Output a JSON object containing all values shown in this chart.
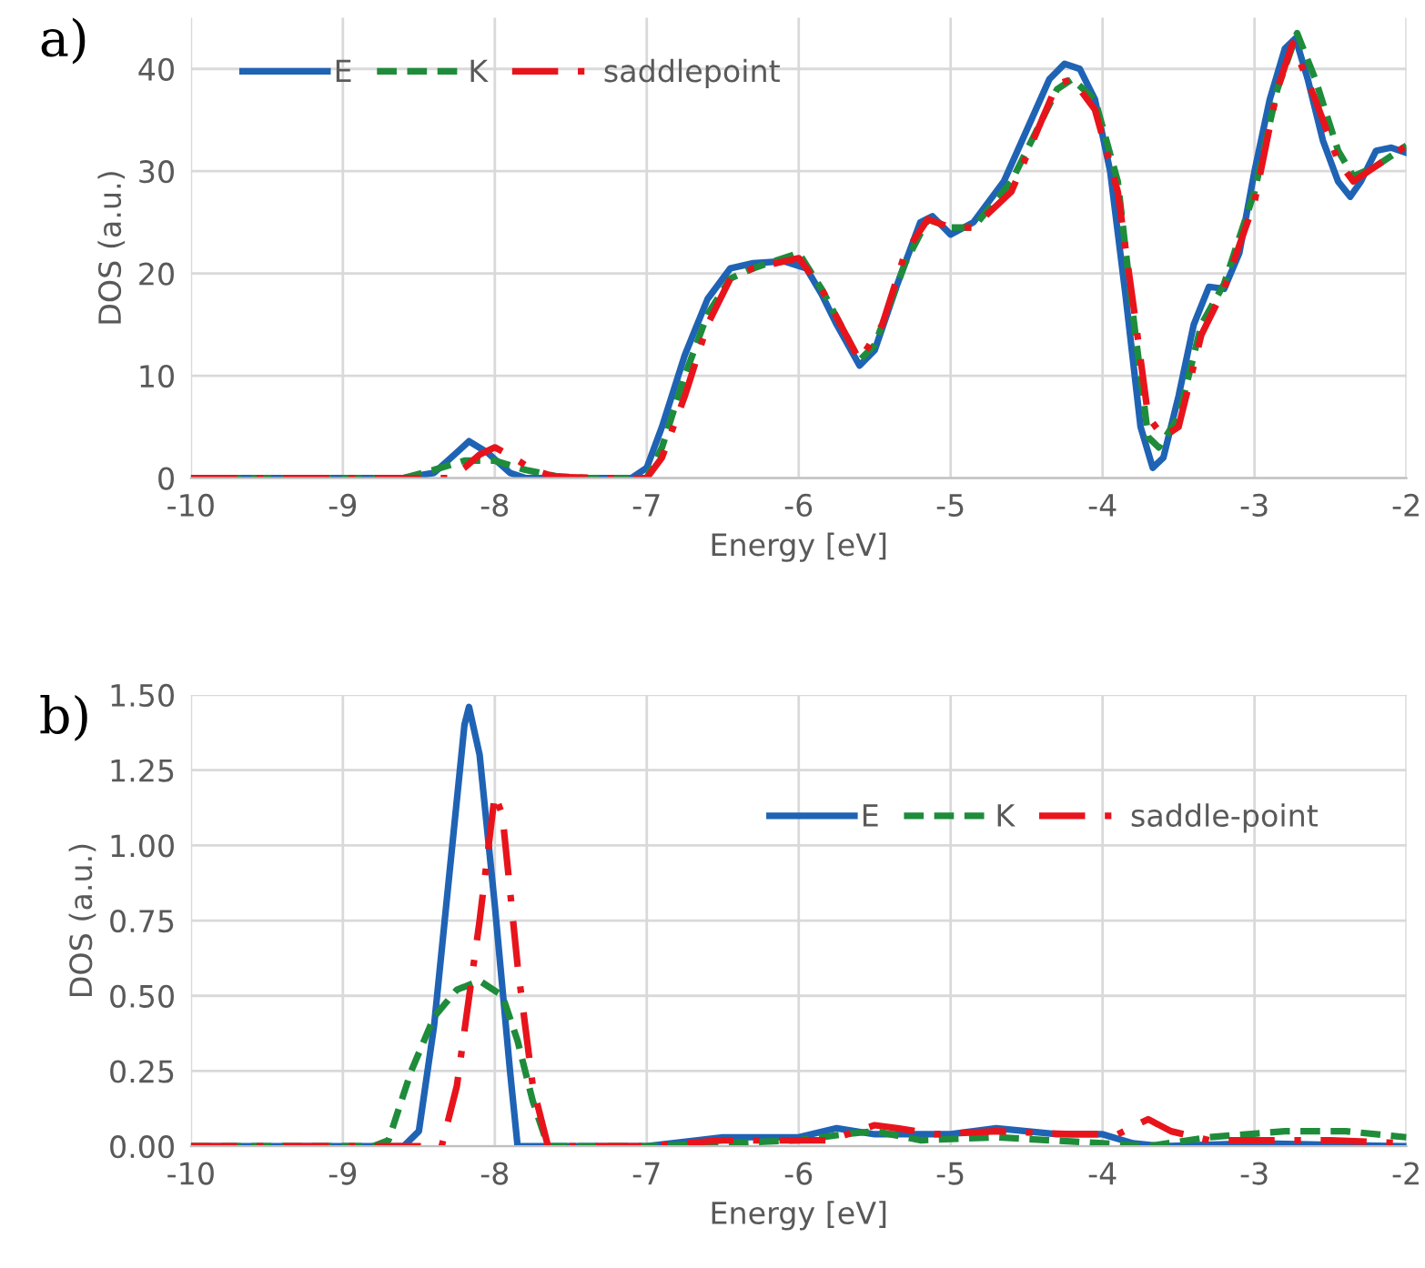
{
  "chart_data": [
    {
      "type": "line",
      "title": "a)",
      "xlabel": "Energy [eV]",
      "ylabel": "DOS (a.u.)",
      "xlim": [
        -10,
        -2
      ],
      "xticks": [
        -10,
        -9,
        -8,
        -7,
        -6,
        -5,
        -4,
        -3,
        -2
      ],
      "ylim": [
        0,
        45
      ],
      "yticks": [
        0,
        10,
        20,
        30,
        40
      ],
      "grid": true,
      "legend": "top left",
      "marker": "none",
      "series": [
        {
          "name": "E",
          "color": "#1f63b5",
          "line_style": "solid",
          "x": [
            -10,
            -8.6,
            -8.4,
            -8.25,
            -8.17,
            -8.05,
            -7.9,
            -7.8,
            -7.1,
            -7.0,
            -6.9,
            -6.75,
            -6.6,
            -6.45,
            -6.3,
            -6.1,
            -5.95,
            -5.85,
            -5.75,
            -5.6,
            -5.5,
            -5.35,
            -5.2,
            -5.12,
            -5.0,
            -4.85,
            -4.65,
            -4.5,
            -4.35,
            -4.25,
            -4.15,
            -4.05,
            -3.95,
            -3.85,
            -3.75,
            -3.67,
            -3.6,
            -3.5,
            -3.4,
            -3.3,
            -3.2,
            -3.1,
            -3.0,
            -2.9,
            -2.8,
            -2.73,
            -2.65,
            -2.55,
            -2.45,
            -2.37,
            -2.3,
            -2.2,
            -2.1,
            -2.0
          ],
          "values": [
            0,
            0,
            0.5,
            2.5,
            3.6,
            2.5,
            0.5,
            0,
            0,
            1,
            5,
            12,
            17.5,
            20.5,
            21,
            21.2,
            20.5,
            18,
            15,
            11,
            12.5,
            19,
            25,
            25.6,
            23.8,
            25,
            29,
            34,
            39,
            40.5,
            40,
            37,
            30,
            18,
            5,
            1,
            2,
            8,
            15,
            18.7,
            18.5,
            22,
            30,
            37,
            42,
            43,
            39,
            33,
            29,
            27.5,
            29,
            32,
            32.3,
            31.8
          ]
        },
        {
          "name": "K",
          "color": "#1e8c3a",
          "line_style": "dashed",
          "x": [
            -10,
            -8.6,
            -8.4,
            -8.2,
            -8.0,
            -7.8,
            -7.6,
            -7.4,
            -7.0,
            -6.9,
            -6.75,
            -6.6,
            -6.45,
            -6.3,
            -6.0,
            -5.85,
            -5.6,
            -5.5,
            -5.3,
            -5.15,
            -5.0,
            -4.85,
            -4.6,
            -4.3,
            -4.2,
            -4.05,
            -3.9,
            -3.8,
            -3.7,
            -3.63,
            -3.5,
            -3.35,
            -3.2,
            -3.0,
            -2.85,
            -2.72,
            -2.6,
            -2.45,
            -2.35,
            -2.2,
            -2.0
          ],
          "values": [
            0,
            0,
            0.8,
            1.7,
            1.7,
            0.8,
            0.2,
            0,
            0,
            3,
            10,
            16,
            19.5,
            20.5,
            22,
            18.5,
            11.5,
            13,
            21,
            25.3,
            24.5,
            24.5,
            29,
            38,
            39,
            37,
            29,
            16,
            4,
            3,
            6,
            15,
            19,
            28,
            38,
            43.5,
            39,
            32,
            29.5,
            30.5,
            32.5
          ]
        },
        {
          "name": "saddlepoint",
          "color": "#e8141c",
          "line_style": "dashdot",
          "x": [
            -10,
            -8.3,
            -8.2,
            -8.1,
            -8.0,
            -7.9,
            -7.75,
            -7.6,
            -7.3,
            -7.0,
            -6.9,
            -6.75,
            -6.6,
            -6.45,
            -6.3,
            -6.0,
            -5.85,
            -5.6,
            -5.45,
            -5.3,
            -5.15,
            -5.0,
            -4.85,
            -4.6,
            -4.3,
            -4.2,
            -4.05,
            -3.9,
            -3.78,
            -3.7,
            -3.6,
            -3.5,
            -3.35,
            -3.2,
            -3.0,
            -2.85,
            -2.75,
            -2.6,
            -2.45,
            -2.35,
            -2.2,
            -2.0
          ],
          "values": [
            0,
            0,
            1,
            2.3,
            3,
            2.2,
            0.8,
            0.1,
            0,
            0,
            2,
            8,
            15,
            19.5,
            20.5,
            21.5,
            18.5,
            11.5,
            15,
            22,
            25.3,
            24.5,
            24.5,
            28,
            38.5,
            39,
            36,
            28,
            15,
            6,
            4,
            5,
            14,
            18.5,
            27,
            38,
            42.5,
            37,
            31,
            29,
            30.5,
            32.5
          ]
        }
      ]
    },
    {
      "type": "line",
      "title": "b)",
      "xlabel": "Energy [eV]",
      "ylabel": "DOS (a.u.)",
      "xlim": [
        -10,
        -2
      ],
      "xticks": [
        -10,
        -9,
        -8,
        -7,
        -6,
        -5,
        -4,
        -3,
        -2
      ],
      "ylim": [
        0,
        1.5
      ],
      "yticks": [
        {
          "value": 0,
          "label": "0.00"
        },
        {
          "value": 0.25,
          "label": "0.25"
        },
        {
          "value": 0.5,
          "label": "0.50"
        },
        {
          "value": 0.75,
          "label": "0.75"
        },
        {
          "value": 1.0,
          "label": "1.00"
        },
        {
          "value": 1.25,
          "label": "1.25"
        },
        {
          "value": 1.5,
          "label": "1.50"
        }
      ],
      "grid": true,
      "legend": "top right",
      "marker": "none",
      "series": [
        {
          "name": "E",
          "color": "#1f63b5",
          "line_style": "solid",
          "x": [
            -10,
            -8.6,
            -8.5,
            -8.4,
            -8.3,
            -8.2,
            -8.17,
            -8.1,
            -8.0,
            -7.9,
            -7.85,
            -7.0,
            -6.5,
            -6.0,
            -5.75,
            -5.5,
            -5.0,
            -4.7,
            -4.3,
            -4.0,
            -3.8,
            -3.6,
            -3.0,
            -2.0
          ],
          "values": [
            0,
            0,
            0.05,
            0.4,
            0.9,
            1.4,
            1.46,
            1.3,
            0.8,
            0.25,
            0,
            0,
            0.03,
            0.03,
            0.06,
            0.04,
            0.04,
            0.06,
            0.04,
            0.04,
            0.01,
            0,
            0.01,
            0
          ]
        },
        {
          "name": "K",
          "color": "#1e8c3a",
          "line_style": "dashed",
          "x": [
            -10,
            -8.8,
            -8.7,
            -8.55,
            -8.4,
            -8.25,
            -8.1,
            -7.95,
            -7.85,
            -7.75,
            -7.65,
            -7.0,
            -6.5,
            -6.0,
            -5.7,
            -5.5,
            -5.2,
            -4.7,
            -4.0,
            -3.7,
            -3.3,
            -2.8,
            -2.4,
            -2.0
          ],
          "values": [
            0,
            0,
            0.02,
            0.25,
            0.43,
            0.52,
            0.55,
            0.5,
            0.35,
            0.15,
            0,
            0,
            0.01,
            0.02,
            0.04,
            0.05,
            0.02,
            0.03,
            0.01,
            0,
            0.03,
            0.05,
            0.05,
            0.03
          ]
        },
        {
          "name": "saddle-point",
          "color": "#e8141c",
          "line_style": "dashdot",
          "x": [
            -10,
            -8.8,
            -8.35,
            -8.25,
            -8.1,
            -8.0,
            -7.95,
            -7.85,
            -7.75,
            -7.65,
            -7.0,
            -6.5,
            -6.0,
            -5.8,
            -5.5,
            -5.35,
            -5.1,
            -4.7,
            -4.2,
            -3.9,
            -3.7,
            -3.55,
            -3.3,
            -2.5,
            -2.0
          ],
          "values": [
            0,
            0,
            0,
            0.2,
            0.75,
            1.17,
            1.1,
            0.6,
            0.2,
            0,
            0,
            0.02,
            0.02,
            0.02,
            0.07,
            0.06,
            0.04,
            0.05,
            0.04,
            0.04,
            0.09,
            0.05,
            0.02,
            0.02,
            0.01
          ]
        }
      ]
    }
  ]
}
